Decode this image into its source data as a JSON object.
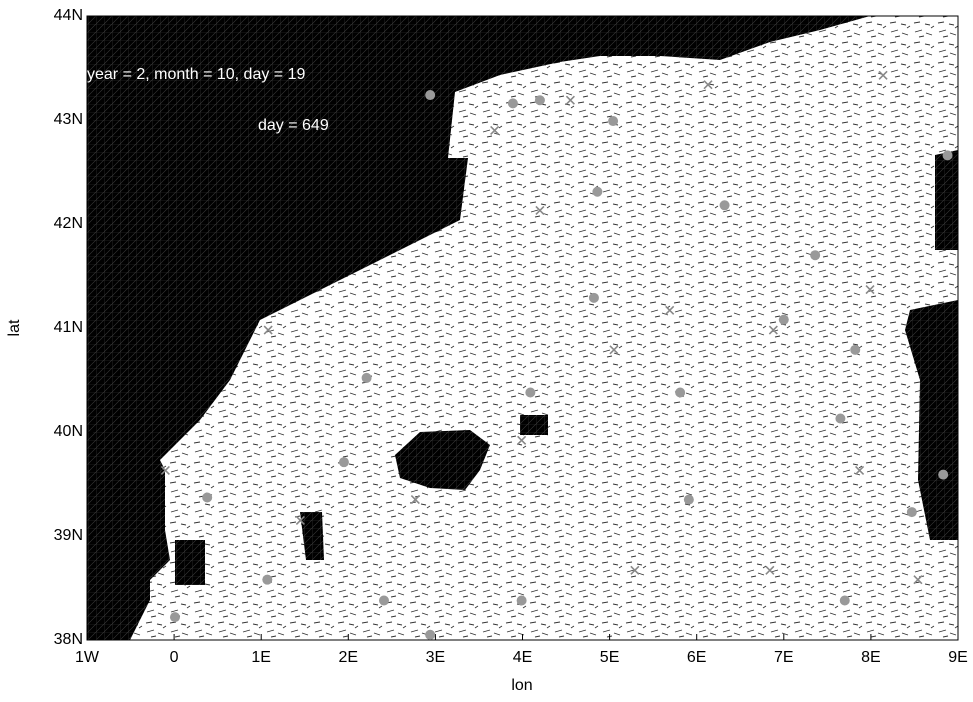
{
  "chart_data": {
    "type": "map",
    "annotations": [
      "year = 2, month = 10, day = 19",
      "day = 649"
    ],
    "xlabel": "lon",
    "ylabel": "lat",
    "xlim": [
      -1,
      9
    ],
    "ylim": [
      38,
      44
    ],
    "xticks": [
      {
        "value": -1,
        "label": "1W"
      },
      0,
      {
        "value": 1,
        "label": "1E"
      },
      {
        "value": 2,
        "label": "2E"
      },
      {
        "value": 3,
        "label": "3E"
      },
      {
        "value": 4,
        "label": "4E"
      },
      {
        "value": 5,
        "label": "5E"
      },
      {
        "value": 6,
        "label": "6E"
      },
      {
        "value": 7,
        "label": "7E"
      },
      {
        "value": 8,
        "label": "8E"
      },
      {
        "value": 9,
        "label": "9E"
      }
    ],
    "yticks": [
      {
        "value": 38,
        "label": "38N"
      },
      {
        "value": 39,
        "label": "39N"
      },
      {
        "value": 40,
        "label": "40N"
      },
      {
        "value": 41,
        "label": "41N"
      },
      {
        "value": 42,
        "label": "42N"
      },
      {
        "value": 43,
        "label": "43N"
      },
      {
        "value": 44,
        "label": "44N"
      }
    ],
    "series": [
      {
        "marker": "circle",
        "color": "#999999",
        "x": [
          0.01,
          0.38,
          1.07,
          2.21,
          1.95,
          4.09,
          4.86,
          5.81,
          5.91,
          7.0,
          7.65,
          7.82,
          7.36,
          4.2,
          6.32,
          8.88,
          2.94,
          3.89,
          5.04,
          4.82,
          3.99,
          2.94,
          2.41,
          8.47,
          8.83,
          7.7
        ],
        "y": [
          38.22,
          39.37,
          38.58,
          40.52,
          39.71,
          40.38,
          42.31,
          40.38,
          39.35,
          41.08,
          40.13,
          40.79,
          41.7,
          43.19,
          42.18,
          42.66,
          43.24,
          43.16,
          42.99,
          41.29,
          38.38,
          38.05,
          38.38,
          39.23,
          39.59,
          38.38
        ]
      },
      {
        "marker": "x",
        "color": "#888888",
        "x": [
          -0.1,
          1.08,
          1.45,
          2.77,
          3.99,
          4.55,
          5.05,
          5.69,
          6.88,
          7.87,
          7.99,
          8.54,
          5.29,
          6.84,
          4.2,
          6.13,
          8.14,
          3.68
        ],
        "y": [
          39.63,
          40.98,
          39.15,
          39.35,
          39.92,
          43.19,
          40.79,
          41.17,
          40.98,
          39.63,
          41.37,
          38.58,
          38.67,
          38.67,
          42.13,
          43.34,
          43.43,
          42.9
        ]
      }
    ]
  }
}
